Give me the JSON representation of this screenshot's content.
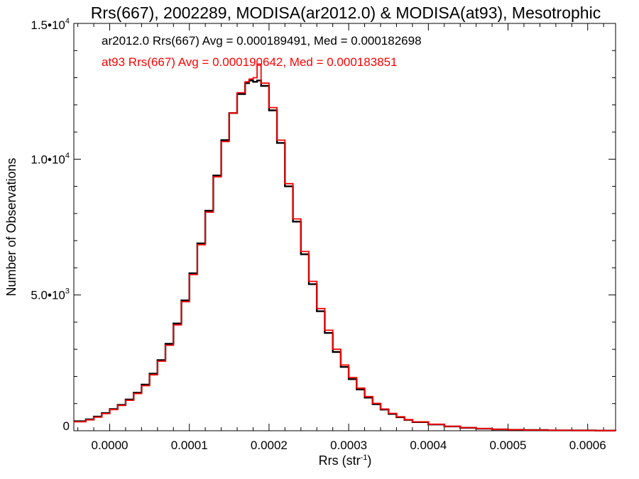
{
  "chart_data": {
    "type": "histogram",
    "title": "Rrs(667), 2002289, MODISA(ar2012.0) & MODISA(at93), Mesotrophic",
    "xlabel": {
      "base": "Rrs (str",
      "sup": "-1",
      "close": ")"
    },
    "ylabel": "Number of Observations",
    "xlim": [
      -4.5e-05,
      0.000635
    ],
    "ylim": [
      0,
      15000
    ],
    "grid": false,
    "x_ticks": [
      {
        "value": 0.0,
        "label": "0.0000"
      },
      {
        "value": 0.0001,
        "label": "0.0001"
      },
      {
        "value": 0.0002,
        "label": "0.0002"
      },
      {
        "value": 0.0003,
        "label": "0.0003"
      },
      {
        "value": 0.0004,
        "label": "0.0004"
      },
      {
        "value": 0.0005,
        "label": "0.0005"
      },
      {
        "value": 0.0006,
        "label": "0.0006"
      }
    ],
    "y_ticks": [
      {
        "value": 0,
        "base": "0",
        "sup": ""
      },
      {
        "value": 5000,
        "base": "5.0•10",
        "sup": "3"
      },
      {
        "value": 10000,
        "base": "1.0•10",
        "sup": "4"
      },
      {
        "value": 15000,
        "base": "1.5•10",
        "sup": "4"
      }
    ],
    "legend_placement": "top-left",
    "series": [
      {
        "name": "ar2012.0",
        "label": "ar2012.0 Rrs(667) Avg = 0.000189491, Med = 0.000182698",
        "color": "#000000",
        "x": [
          -4.5e-05,
          -3e-05,
          -2e-05,
          -1e-05,
          0.0,
          1e-05,
          2e-05,
          3e-05,
          4e-05,
          5e-05,
          6e-05,
          7e-05,
          8e-05,
          9e-05,
          0.0001,
          0.00011,
          0.00012,
          0.00013,
          0.00014,
          0.00015,
          0.00016,
          0.00017,
          0.000175,
          0.00018,
          0.000185,
          0.00019,
          0.0002,
          0.00021,
          0.00022,
          0.00023,
          0.00024,
          0.00025,
          0.00026,
          0.00027,
          0.00028,
          0.00029,
          0.0003,
          0.00031,
          0.00032,
          0.00033,
          0.00034,
          0.00035,
          0.00036,
          0.00037,
          0.00038,
          0.0004,
          0.00042,
          0.00044,
          0.00046,
          0.00048,
          0.0005,
          0.00052,
          0.00055,
          0.00058,
          0.00061,
          0.000635
        ],
        "y": [
          350,
          420,
          520,
          650,
          800,
          950,
          1150,
          1400,
          1700,
          2100,
          2600,
          3200,
          3950,
          4800,
          5800,
          6900,
          8100,
          9400,
          10700,
          11700,
          12400,
          12800,
          12900,
          12850,
          12900,
          12700,
          11800,
          10600,
          9000,
          7700,
          6500,
          5400,
          4400,
          3600,
          2900,
          2350,
          1900,
          1520,
          1220,
          980,
          780,
          620,
          500,
          400,
          320,
          230,
          160,
          110,
          75,
          50,
          35,
          25,
          15,
          10,
          5,
          0
        ]
      },
      {
        "name": "at93",
        "label": "at93 Rrs(667) Avg = 0.000190642, Med = 0.000183851",
        "color": "#ff0000",
        "x": [
          -4.5e-05,
          -3e-05,
          -2e-05,
          -1e-05,
          0.0,
          1e-05,
          2e-05,
          3e-05,
          4e-05,
          5e-05,
          6e-05,
          7e-05,
          8e-05,
          9e-05,
          0.0001,
          0.00011,
          0.00012,
          0.00013,
          0.00014,
          0.00015,
          0.00016,
          0.00017,
          0.000175,
          0.00018,
          0.000185,
          0.00019,
          0.0002,
          0.00021,
          0.00022,
          0.00023,
          0.00024,
          0.00025,
          0.00026,
          0.00027,
          0.00028,
          0.00029,
          0.0003,
          0.00031,
          0.00032,
          0.00033,
          0.00034,
          0.00035,
          0.00036,
          0.00037,
          0.00038,
          0.0004,
          0.00042,
          0.00044,
          0.00046,
          0.00048,
          0.0005,
          0.00052,
          0.00055,
          0.00058,
          0.00061,
          0.000635
        ],
        "y": [
          330,
          400,
          500,
          630,
          780,
          930,
          1120,
          1370,
          1660,
          2060,
          2560,
          3150,
          3900,
          4750,
          5750,
          6850,
          8050,
          9350,
          10650,
          11700,
          12450,
          12850,
          12950,
          13000,
          13500,
          12800,
          11900,
          10700,
          9100,
          7800,
          6600,
          5500,
          4500,
          3700,
          3000,
          2420,
          1960,
          1570,
          1260,
          1010,
          800,
          640,
          515,
          410,
          330,
          240,
          165,
          115,
          80,
          52,
          36,
          26,
          16,
          10,
          5,
          0
        ]
      }
    ]
  }
}
